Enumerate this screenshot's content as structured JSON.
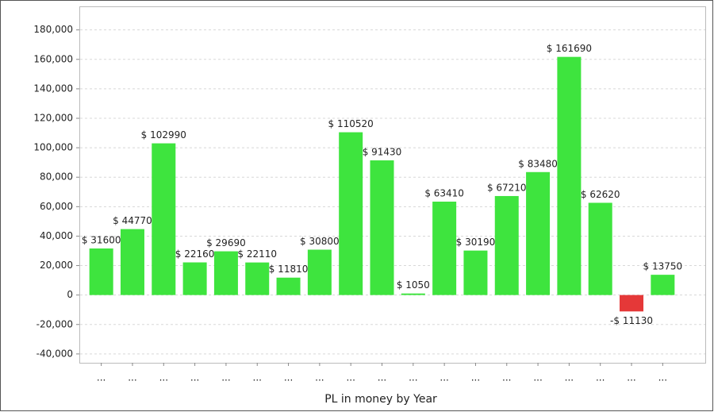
{
  "chart_data": {
    "type": "bar",
    "x_label": "PL in money by Year",
    "categories": [
      "...",
      "...",
      "...",
      "...",
      "...",
      "...",
      "...",
      "...",
      "...",
      "...",
      "...",
      "...",
      "...",
      "...",
      "...",
      "...",
      "...",
      "...",
      "..."
    ],
    "values": [
      31600,
      44770,
      102990,
      22160,
      29690,
      22110,
      11810,
      30800,
      110520,
      91430,
      1050,
      63410,
      30190,
      67210,
      83480,
      161690,
      62620,
      -11130,
      13750
    ],
    "value_labels": [
      "$ 31600",
      "$ 44770",
      "$ 102990",
      "$ 22160",
      "$ 29690",
      "$ 22110",
      "$ 11810",
      "$ 30800",
      "$ 110520",
      "$ 91430",
      "$ 1050",
      "$ 63410",
      "$ 30190",
      "$ 67210",
      "$ 83480",
      "$ 161690",
      "$ 62620",
      "-$ 11130",
      "$ 13750"
    ],
    "color": "#3ee43e",
    "negative_color": "#e53838",
    "ylim": [
      -46000,
      196000
    ],
    "yticks": [
      {
        "value": -40000,
        "label": "-40,000"
      },
      {
        "value": -20000,
        "label": "-20,000"
      },
      0,
      {
        "value": 20000,
        "label": "20,000"
      },
      {
        "value": 40000,
        "label": "40,000"
      },
      {
        "value": 60000,
        "label": "60,000"
      },
      {
        "value": 80000,
        "label": "80,000"
      },
      {
        "value": 100000,
        "label": "100,000"
      },
      {
        "value": 120000,
        "label": "120,000"
      },
      {
        "value": 140000,
        "label": "140,000"
      },
      {
        "value": 160000,
        "label": "160,000"
      },
      {
        "value": 180000,
        "label": "180,000"
      }
    ],
    "grid": true
  }
}
